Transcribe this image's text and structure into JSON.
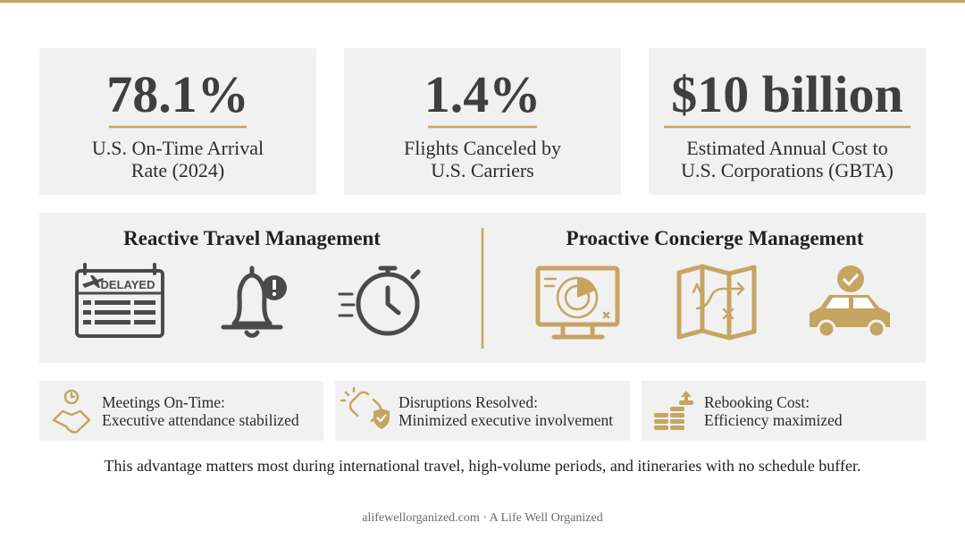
{
  "stats": [
    {
      "value": "78.1%",
      "label_lines": [
        "U.S. On-Time Arrival",
        "Rate (2024)"
      ]
    },
    {
      "value": "1.4%",
      "label_lines": [
        "Flights Canceled by",
        "U.S. Carriers"
      ]
    },
    {
      "value": "$10 billion",
      "label_lines": [
        "Estimated Annual Cost to",
        "U.S. Corporations (GBTA)"
      ]
    }
  ],
  "comparison": {
    "reactive": {
      "title": "Reactive Travel Management",
      "board_label": "DELAYED"
    },
    "proactive": {
      "title": "Proactive Concierge Management"
    }
  },
  "benefits": [
    {
      "title": "Meetings On-Time:",
      "text": "Executive attendance stabilized"
    },
    {
      "title": "Disruptions Resolved:",
      "text": "Minimized executive involvement"
    },
    {
      "title": "Rebooking Cost:",
      "text": "Efficiency maximized"
    }
  ],
  "note": "This advantage matters most during international travel, high-volume periods, and itineraries with no schedule buffer.",
  "footer": "alifewellorganized.com · A Life Well Organized"
}
